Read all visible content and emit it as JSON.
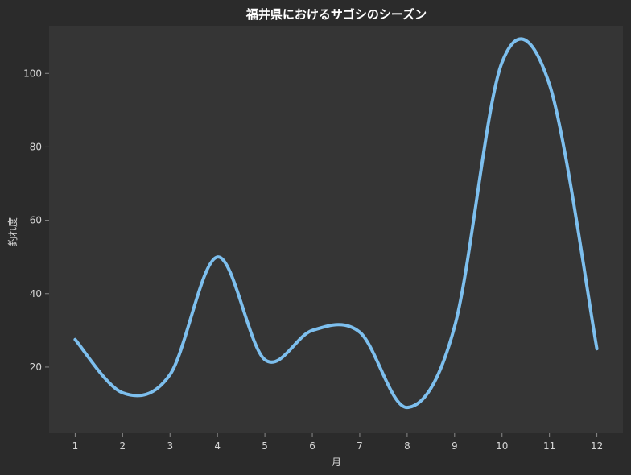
{
  "chart_data": {
    "type": "line",
    "title": "福井県におけるサゴシのシーズン",
    "xlabel": "月",
    "ylabel": "釣れ度",
    "x": [
      1,
      2,
      3,
      4,
      5,
      6,
      7,
      8,
      9,
      10,
      11,
      12
    ],
    "series": [
      {
        "values": [
          27.5,
          13,
          18,
          50,
          22,
          30,
          29.5,
          9,
          31,
          103,
          97,
          25
        ],
        "color": "#7dbfee"
      }
    ],
    "xlim": [
      0.45,
      12.55
    ],
    "ylim": [
      2,
      113
    ],
    "yticks": [
      20,
      40,
      60,
      80,
      100
    ],
    "grid": false,
    "colors": {
      "background": "#2b2b2b",
      "plot_background": "#353535",
      "line": "#7dbfee"
    }
  }
}
